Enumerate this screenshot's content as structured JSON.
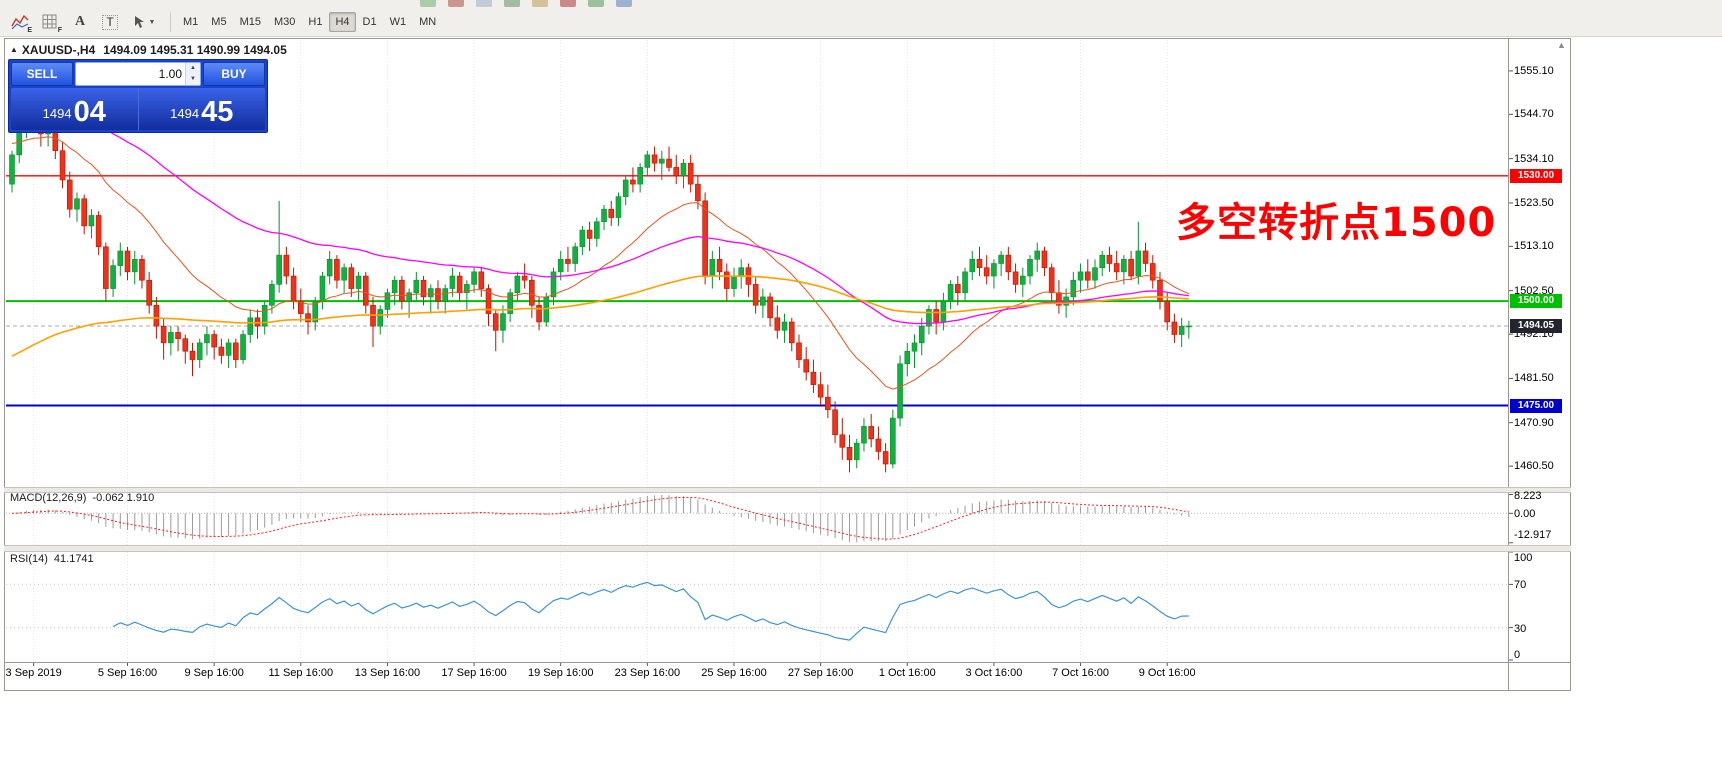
{
  "toolbar": {
    "tool_icons": [
      "indicators-e-icon",
      "grid-f-icon",
      "text-a-icon",
      "text-label-icon",
      "arrow-tools-icon"
    ],
    "timeframes": [
      "M1",
      "M5",
      "M15",
      "M30",
      "H1",
      "H4",
      "D1",
      "W1",
      "MN"
    ],
    "active_timeframe": "H4"
  },
  "symbol_header": {
    "collapse_arrow": "▲",
    "title": "XAUUSD-,H4",
    "ohlc": "1494.09 1495.31 1490.99 1494.05"
  },
  "trade_panel": {
    "sell_label": "SELL",
    "buy_label": "BUY",
    "volume": "1.00",
    "sell_price_main": "1494",
    "sell_price_pips": "04",
    "buy_price_main": "1494",
    "buy_price_pips": "45"
  },
  "annotation": {
    "text": "多空转折点1500",
    "color": "#ff0000"
  },
  "price_axis": {
    "ticks": [
      "1555.10",
      "1544.70",
      "1534.10",
      "1523.50",
      "1513.10",
      "1502.50",
      "1492.10",
      "1481.50",
      "1470.90",
      "1460.50"
    ]
  },
  "time_axis": {
    "labels": [
      {
        "text": "3 Sep 2019",
        "bar": 3
      },
      {
        "text": "5 Sep 16:00",
        "bar": 16
      },
      {
        "text": "9 Sep 16:00",
        "bar": 28
      },
      {
        "text": "11 Sep 16:00",
        "bar": 40
      },
      {
        "text": "13 Sep 16:00",
        "bar": 52
      },
      {
        "text": "17 Sep 16:00",
        "bar": 64
      },
      {
        "text": "19 Sep 16:00",
        "bar": 76
      },
      {
        "text": "23 Sep 16:00",
        "bar": 88
      },
      {
        "text": "25 Sep 16:00",
        "bar": 100
      },
      {
        "text": "27 Sep 16:00",
        "bar": 112
      },
      {
        "text": "1 Oct 16:00",
        "bar": 124
      },
      {
        "text": "3 Oct 16:00",
        "bar": 136
      },
      {
        "text": "7 Oct 16:00",
        "bar": 148
      },
      {
        "text": "9 Oct 16:00",
        "bar": 160
      }
    ]
  },
  "levels": [
    {
      "label": "1530.00",
      "price": 1530.0,
      "color": "#ff0000",
      "width": 1.4
    },
    {
      "label": "1500.00",
      "price": 1500.0,
      "color": "#00bf00",
      "width": 2
    },
    {
      "label": "1475.00",
      "price": 1475.0,
      "color": "#0000cc",
      "width": 2
    }
  ],
  "bid": {
    "label": "1494.05",
    "price": 1494.05,
    "line_color": "#a8a8a8",
    "tag_bg": "#23242e"
  },
  "chart_data": {
    "type": "candlestick",
    "title": "XAUUSD- H4",
    "price_range": [
      1455.5,
      1562.5
    ],
    "up_color": "#12b13f",
    "up_stroke": "#079030",
    "down_color": "#ee3118",
    "down_stroke": "#bb1400",
    "candles": [
      [
        1528,
        1536,
        1526,
        1535
      ],
      [
        1535,
        1543,
        1533,
        1541
      ],
      [
        1541,
        1547,
        1539,
        1544
      ],
      [
        1544,
        1549,
        1541,
        1543
      ],
      [
        1543,
        1545,
        1537,
        1540
      ],
      [
        1540,
        1544,
        1537,
        1542
      ],
      [
        1542,
        1543.5,
        1534,
        1536
      ],
      [
        1536,
        1538,
        1527,
        1529
      ],
      [
        1529,
        1531,
        1520,
        1522
      ],
      [
        1522,
        1526,
        1519,
        1524.5
      ],
      [
        1524.5,
        1525.5,
        1516,
        1518
      ],
      [
        1518,
        1522,
        1515,
        1520.5
      ],
      [
        1520.5,
        1521.5,
        1511,
        1513
      ],
      [
        1513,
        1514,
        1500,
        1503
      ],
      [
        1503,
        1510,
        1501,
        1508.5
      ],
      [
        1508.5,
        1514,
        1506,
        1512
      ],
      [
        1512,
        1513,
        1505,
        1507
      ],
      [
        1507,
        1512,
        1504,
        1510
      ],
      [
        1510,
        1511,
        1503,
        1505
      ],
      [
        1505,
        1507,
        1497,
        1499
      ],
      [
        1499,
        1501,
        1491,
        1494
      ],
      [
        1494,
        1496,
        1486,
        1490
      ],
      [
        1490,
        1494,
        1487,
        1492.5
      ],
      [
        1492.5,
        1494,
        1488,
        1491
      ],
      [
        1491,
        1492,
        1485,
        1488
      ],
      [
        1488,
        1490,
        1482,
        1486
      ],
      [
        1486,
        1491,
        1484,
        1490
      ],
      [
        1490,
        1494,
        1487,
        1492
      ],
      [
        1492,
        1493,
        1486,
        1489
      ],
      [
        1489,
        1491,
        1485,
        1487
      ],
      [
        1487,
        1491,
        1484,
        1490
      ],
      [
        1490,
        1491,
        1484,
        1486
      ],
      [
        1486,
        1493,
        1485,
        1492
      ],
      [
        1492,
        1498,
        1490,
        1496
      ],
      [
        1496,
        1498,
        1491,
        1494
      ],
      [
        1494,
        1500,
        1492,
        1499
      ],
      [
        1499,
        1505,
        1497,
        1504
      ],
      [
        1504,
        1524,
        1502,
        1511
      ],
      [
        1511,
        1513,
        1504,
        1506
      ],
      [
        1506,
        1508,
        1498,
        1500
      ],
      [
        1500,
        1503,
        1495,
        1497
      ],
      [
        1497,
        1499,
        1492,
        1495
      ],
      [
        1495,
        1501,
        1493,
        1500
      ],
      [
        1500,
        1507,
        1498,
        1506
      ],
      [
        1506,
        1512,
        1504,
        1510
      ],
      [
        1510,
        1511,
        1503,
        1505
      ],
      [
        1505,
        1509,
        1502,
        1508
      ],
      [
        1508,
        1509,
        1501,
        1503
      ],
      [
        1503,
        1507,
        1500,
        1506
      ],
      [
        1506,
        1507,
        1497,
        1499
      ],
      [
        1499,
        1501,
        1489,
        1494
      ],
      [
        1494,
        1499,
        1492,
        1498
      ],
      [
        1498,
        1503,
        1496,
        1502
      ],
      [
        1502,
        1506,
        1499,
        1505
      ],
      [
        1505,
        1506,
        1498,
        1500
      ],
      [
        1500,
        1503,
        1496,
        1502
      ],
      [
        1502,
        1507,
        1500,
        1505
      ],
      [
        1505,
        1506,
        1499,
        1501
      ],
      [
        1501,
        1504,
        1497,
        1503
      ],
      [
        1503,
        1505,
        1498,
        1500
      ],
      [
        1500,
        1504,
        1497,
        1503
      ],
      [
        1503,
        1508,
        1501,
        1506
      ],
      [
        1506,
        1507,
        1500,
        1502
      ],
      [
        1502,
        1505,
        1498,
        1504
      ],
      [
        1504,
        1508,
        1502,
        1507
      ],
      [
        1507,
        1508,
        1501,
        1503
      ],
      [
        1503,
        1504,
        1494,
        1497
      ],
      [
        1497,
        1498,
        1488,
        1493
      ],
      [
        1493,
        1499,
        1490,
        1497
      ],
      [
        1497,
        1503,
        1495,
        1502
      ],
      [
        1502,
        1507,
        1500,
        1506
      ],
      [
        1506,
        1509,
        1503,
        1505
      ],
      [
        1505,
        1506,
        1496,
        1499
      ],
      [
        1499,
        1501,
        1493,
        1495
      ],
      [
        1495,
        1502,
        1494,
        1501
      ],
      [
        1501,
        1508,
        1499,
        1507
      ],
      [
        1507,
        1512,
        1505,
        1510
      ],
      [
        1510,
        1513,
        1507,
        1509
      ],
      [
        1509,
        1514,
        1507,
        1513
      ],
      [
        1513,
        1518,
        1511,
        1517
      ],
      [
        1517,
        1519,
        1512,
        1515
      ],
      [
        1515,
        1520,
        1513,
        1519
      ],
      [
        1519,
        1523,
        1517,
        1522
      ],
      [
        1522,
        1524,
        1518,
        1520
      ],
      [
        1520,
        1526,
        1518,
        1525
      ],
      [
        1525,
        1530,
        1523,
        1529
      ],
      [
        1529,
        1532,
        1526,
        1528
      ],
      [
        1528,
        1533,
        1526,
        1532
      ],
      [
        1532,
        1536,
        1530,
        1535
      ],
      [
        1535,
        1537,
        1531,
        1533
      ],
      [
        1533,
        1536,
        1529,
        1534
      ],
      [
        1534,
        1537,
        1531,
        1532
      ],
      [
        1532,
        1535,
        1528,
        1530
      ],
      [
        1530,
        1534,
        1527,
        1533
      ],
      [
        1533,
        1535,
        1526,
        1528
      ],
      [
        1528,
        1530,
        1522,
        1524
      ],
      [
        1524,
        1526,
        1504,
        1506
      ],
      [
        1506,
        1512,
        1503,
        1510
      ],
      [
        1510,
        1513,
        1505,
        1507
      ],
      [
        1507,
        1509,
        1500,
        1503
      ],
      [
        1503,
        1508,
        1501,
        1506
      ],
      [
        1506,
        1510,
        1503,
        1508
      ],
      [
        1508,
        1509,
        1501,
        1504
      ],
      [
        1504,
        1506,
        1497,
        1499
      ],
      [
        1499,
        1503,
        1496,
        1501
      ],
      [
        1501,
        1502,
        1494,
        1496
      ],
      [
        1496,
        1499,
        1491,
        1493
      ],
      [
        1493,
        1497,
        1490,
        1495
      ],
      [
        1495,
        1496,
        1488,
        1490
      ],
      [
        1490,
        1492,
        1484,
        1486
      ],
      [
        1486,
        1489,
        1481,
        1483
      ],
      [
        1483,
        1486,
        1478,
        1480
      ],
      [
        1480,
        1483,
        1475,
        1477
      ],
      [
        1477,
        1480,
        1472,
        1474
      ],
      [
        1474,
        1476,
        1466,
        1468
      ],
      [
        1468,
        1472,
        1462,
        1465
      ],
      [
        1465,
        1468,
        1459,
        1462
      ],
      [
        1462,
        1467,
        1460,
        1466
      ],
      [
        1466,
        1472,
        1464,
        1470
      ],
      [
        1470,
        1473,
        1465,
        1467
      ],
      [
        1467,
        1470,
        1462,
        1464
      ],
      [
        1464,
        1466,
        1459,
        1461
      ],
      [
        1461,
        1474,
        1460,
        1472
      ],
      [
        1472,
        1487,
        1470,
        1485
      ],
      [
        1485,
        1490,
        1482,
        1488
      ],
      [
        1488,
        1492,
        1484,
        1490
      ],
      [
        1490,
        1496,
        1487,
        1494
      ],
      [
        1494,
        1499,
        1492,
        1498
      ],
      [
        1498,
        1500,
        1492,
        1495
      ],
      [
        1495,
        1502,
        1493,
        1500
      ],
      [
        1500,
        1505,
        1498,
        1504
      ],
      [
        1504,
        1506,
        1499,
        1502
      ],
      [
        1502,
        1508,
        1500,
        1507
      ],
      [
        1507,
        1512,
        1505,
        1510
      ],
      [
        1510,
        1513,
        1506,
        1508
      ],
      [
        1508,
        1511,
        1504,
        1506
      ],
      [
        1506,
        1510,
        1503,
        1509
      ],
      [
        1509,
        1512,
        1506,
        1511
      ],
      [
        1511,
        1513,
        1505,
        1507
      ],
      [
        1507,
        1509,
        1502,
        1504
      ],
      [
        1504,
        1508,
        1501,
        1506
      ],
      [
        1506,
        1511,
        1504,
        1510
      ],
      [
        1510,
        1514,
        1507,
        1512
      ],
      [
        1512,
        1513,
        1506,
        1508
      ],
      [
        1508,
        1509,
        1500,
        1502
      ],
      [
        1502,
        1505,
        1497,
        1499
      ],
      [
        1499,
        1503,
        1496,
        1501
      ],
      [
        1501,
        1507,
        1499,
        1505
      ],
      [
        1505,
        1509,
        1502,
        1507
      ],
      [
        1507,
        1510,
        1503,
        1505
      ],
      [
        1505,
        1510,
        1503,
        1508
      ],
      [
        1508,
        1512,
        1506,
        1511
      ],
      [
        1511,
        1513,
        1507,
        1509
      ],
      [
        1509,
        1512,
        1505,
        1507
      ],
      [
        1507,
        1511,
        1504,
        1510
      ],
      [
        1510,
        1512,
        1505,
        1506
      ],
      [
        1506,
        1519,
        1504,
        1512
      ],
      [
        1512,
        1514,
        1507,
        1509
      ],
      [
        1509,
        1511,
        1503,
        1505
      ],
      [
        1505,
        1507,
        1498,
        1500
      ],
      [
        1500,
        1502,
        1493,
        1495
      ],
      [
        1495,
        1497,
        1490,
        1492
      ],
      [
        1492,
        1496,
        1489,
        1494
      ],
      [
        1494,
        1495.31,
        1490.99,
        1494.05
      ]
    ],
    "moving_averages": [
      {
        "name": "fast",
        "period": 21,
        "seed": 1538,
        "color": "#e8541e",
        "width": 1
      },
      {
        "name": "mid",
        "period": 60,
        "seed": 1549,
        "color": "#ff00ff",
        "width": 1.3
      },
      {
        "name": "slow",
        "period": 120,
        "seed": 1486,
        "color": "#ffa000",
        "width": 1.6
      }
    ]
  },
  "macd": {
    "label": "MACD(12,26,9)",
    "values": "-0.062 1.910",
    "fast": 12,
    "slow": 26,
    "signal_period": 9,
    "axis_labels": [
      "8.223",
      "0.00",
      "-12.917"
    ],
    "range": [
      -13.9,
      8.9
    ],
    "histogram_color": "#9b9b9b",
    "signal_color": "#ff1e1e"
  },
  "rsi": {
    "label": "RSI(14)",
    "value": "41.1741",
    "period": 14,
    "axis_labels": [
      "100",
      "70",
      "30",
      "0"
    ],
    "levels": [
      70,
      30
    ],
    "line_color": "#3f93d2"
  }
}
